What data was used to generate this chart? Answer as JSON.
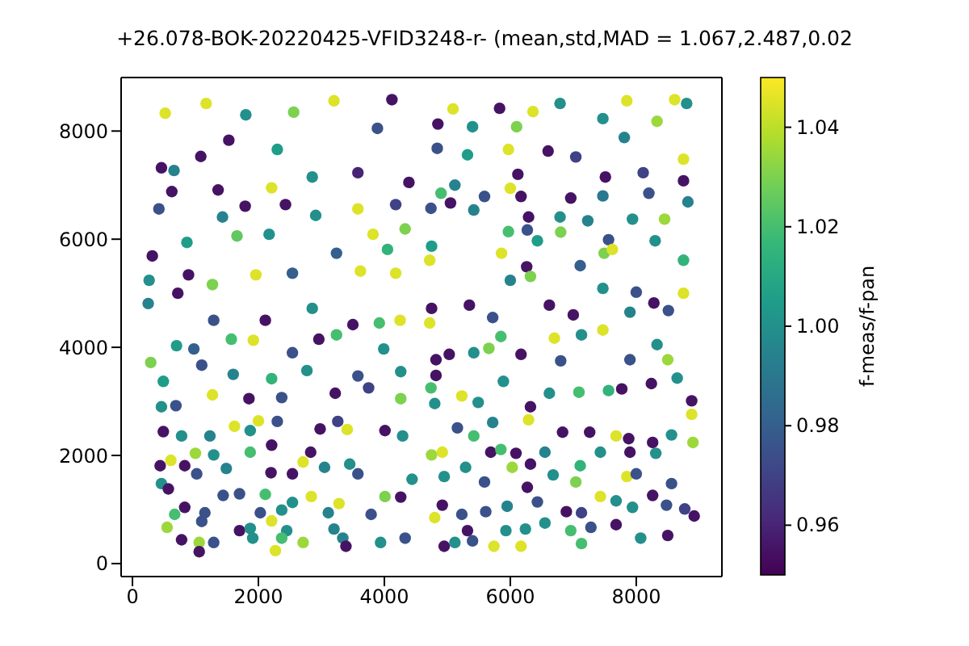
{
  "chart_data": {
    "type": "scatter",
    "title": "+26.078-BOK-20220425-VFID3248-r- (mean,std,MAD = 1.067,2.487,0.02",
    "clabel": "f-meas/f-pan",
    "marker": "circle",
    "xlim": [
      -180,
      9360
    ],
    "ylim": [
      -240,
      8990
    ],
    "xticks": [
      0,
      2000,
      4000,
      6000,
      8000
    ],
    "yticks": [
      0,
      2000,
      4000,
      6000,
      8000
    ],
    "clim": [
      0.95,
      1.05
    ],
    "cticks": [
      0.96,
      0.98,
      {
        "value": 1.0,
        "label": "1.00"
      },
      1.02,
      1.04
    ],
    "x": [
      520,
      1170,
      1800,
      2560,
      3200,
      4120,
      1085,
      1530,
      2300,
      3890,
      460,
      660,
      625,
      1360,
      2210,
      2855,
      3580,
      4390,
      420,
      1790,
      2430,
      3580,
      4180,
      1430,
      2170,
      2910,
      3820,
      4330,
      315,
      865,
      1660,
      3240,
      4050,
      265,
      890,
      1270,
      1960,
      2540,
      3620,
      4180,
      250,
      720,
      1290,
      2110,
      2855,
      3500,
      3920,
      4250,
      5090,
      5830,
      6360,
      6790,
      4850,
      5400,
      6100,
      7470,
      7850,
      8610,
      8800,
      8330,
      4840,
      5320,
      5970,
      6600,
      7040,
      7810,
      8750,
      6120,
      7510,
      8110,
      8750,
      5120,
      6000,
      4900,
      5050,
      5590,
      6170,
      6960,
      7470,
      8200,
      8820,
      4740,
      5420,
      6290,
      6790,
      7230,
      7940,
      8450,
      4720,
      4750,
      5970,
      6270,
      6800,
      7560,
      8300,
      5860,
      6430,
      7490,
      7620,
      8750,
      6260,
      7110,
      6000,
      6320,
      7470,
      8000,
      8750,
      4750,
      5350,
      5720,
      6620,
      7000,
      7900,
      8280,
      8510,
      4720,
      290,
      700,
      975,
      1570,
      1920,
      2540,
      2960,
      3240,
      3990,
      490,
      1100,
      1600,
      2210,
      2770,
      3580,
      4260,
      1270,
      1850,
      2370,
      3220,
      3750,
      4260,
      460,
      690,
      1620,
      2000,
      2300,
      2980,
      3260,
      490,
      780,
      1230,
      1870,
      2210,
      3410,
      4010,
      4290,
      610,
      1000,
      440,
      830,
      1290,
      1490,
      1870,
      2200,
      2540,
      2710,
      2830,
      3050,
      3450,
      3580,
      4440,
      460,
      570,
      1020,
      1440,
      1700,
      2110,
      2840,
      3280,
      4010,
      4260,
      830,
      1150,
      670,
      2030,
      2370,
      2540,
      3110,
      3790,
      550,
      1100,
      1700,
      1870,
      2210,
      2450,
      3200,
      780,
      1060,
      1290,
      1910,
      2370,
      2710,
      3340,
      3940,
      4330,
      1060,
      2270,
      3390,
      4820,
      5030,
      5420,
      5660,
      5850,
      6170,
      6700,
      6800,
      7130,
      7470,
      7900,
      8330,
      8500,
      4820,
      4740,
      5230,
      5490,
      5890,
      6320,
      6620,
      7090,
      7560,
      7770,
      8240,
      8650,
      8880,
      8880,
      4800,
      5720,
      6290,
      6830,
      7260,
      7680,
      7880,
      8260,
      8560,
      8900,
      4750,
      4920,
      5160,
      5420,
      5690,
      5850,
      6090,
      6030,
      6550,
      6320,
      7110,
      7430,
      7900,
      8310,
      4950,
      5290,
      5590,
      6270,
      6680,
      7040,
      7850,
      8000,
      8560,
      4920,
      4800,
      5230,
      5610,
      5950,
      6430,
      6890,
      7130,
      7430,
      7680,
      7940,
      8260,
      8480,
      8770,
      8920,
      5320,
      5930,
      6240,
      6550,
      6960,
      7280,
      7680,
      8070,
      8500,
      4950,
      5120,
      5400,
      5740,
      6170,
      7130
    ],
    "values": [
      8330,
      8510,
      8300,
      8350,
      8560,
      8580,
      7530,
      7830,
      7660,
      8050,
      7320,
      7270,
      6880,
      6910,
      6950,
      7150,
      7230,
      7050,
      6560,
      6610,
      6640,
      6560,
      6640,
      6410,
      6090,
      6440,
      6090,
      6190,
      5690,
      5940,
      6060,
      5740,
      5810,
      5240,
      5340,
      5160,
      5340,
      5370,
      5410,
      5370,
      4810,
      5000,
      4500,
      4500,
      4720,
      4420,
      4450,
      4500,
      8410,
      8420,
      8360,
      8510,
      8130,
      8080,
      8080,
      8230,
      8560,
      8580,
      8510,
      8180,
      7680,
      7560,
      7660,
      7630,
      7520,
      7880,
      7480,
      7200,
      7150,
      7230,
      7080,
      7000,
      6940,
      6850,
      6670,
      6790,
      6790,
      6760,
      6800,
      6850,
      6690,
      6570,
      6540,
      6410,
      6410,
      6340,
      6370,
      6370,
      5610,
      5870,
      6140,
      6170,
      6130,
      5990,
      5970,
      5740,
      5970,
      5740,
      5810,
      5610,
      5490,
      5510,
      5240,
      5310,
      5090,
      5020,
      5000,
      4720,
      4780,
      4550,
      4780,
      4600,
      4650,
      4820,
      4680,
      4450,
      3720,
      4030,
      3970,
      4150,
      4130,
      3900,
      4150,
      4230,
      3970,
      3370,
      3670,
      3500,
      3420,
      3570,
      3470,
      3550,
      3120,
      3050,
      3070,
      3150,
      3250,
      3050,
      2900,
      2920,
      2540,
      2640,
      2630,
      2490,
      2630,
      2440,
      2360,
      2360,
      2460,
      2190,
      2480,
      2460,
      2360,
      1910,
      2040,
      1810,
      1810,
      2010,
      1760,
      2060,
      1680,
      1660,
      1880,
      2060,
      1780,
      1840,
      1660,
      1560,
      1480,
      1380,
      1660,
      1260,
      1290,
      1280,
      1240,
      1110,
      1240,
      1230,
      1040,
      940,
      910,
      940,
      990,
      1130,
      940,
      910,
      670,
      780,
      610,
      650,
      790,
      610,
      640,
      440,
      390,
      390,
      470,
      470,
      390,
      470,
      390,
      470,
      220,
      240,
      320,
      3770,
      3870,
      3900,
      3980,
      4200,
      3870,
      4170,
      3750,
      4230,
      4320,
      3770,
      4050,
      3770,
      3480,
      3250,
      3100,
      2980,
      3370,
      2900,
      3150,
      3170,
      3200,
      3230,
      3330,
      3430,
      3010,
      2760,
      2960,
      2610,
      2660,
      2430,
      2430,
      2360,
      2310,
      2240,
      2380,
      2240,
      2010,
      2060,
      2510,
      2360,
      2060,
      2110,
      2040,
      1780,
      2060,
      1840,
      1810,
      2060,
      2060,
      2040,
      1610,
      1780,
      1510,
      1410,
      1640,
      1510,
      1610,
      1660,
      1480,
      1080,
      850,
      910,
      960,
      1060,
      1140,
      960,
      940,
      1240,
      1160,
      1040,
      1260,
      1080,
      1010,
      880,
      610,
      610,
      640,
      750,
      610,
      670,
      720,
      470,
      520,
      320,
      390,
      420,
      320,
      320,
      370
    ],
    "cvalues": [
      1.045,
      1.045,
      1.0,
      1.03,
      1.045,
      0.955,
      0.955,
      0.955,
      1.005,
      0.975,
      0.955,
      0.995,
      0.955,
      0.955,
      1.045,
      1.0,
      0.96,
      0.955,
      0.975,
      0.955,
      0.955,
      1.045,
      0.97,
      0.995,
      1.0,
      1.0,
      1.045,
      1.03,
      0.955,
      1.005,
      1.025,
      0.98,
      1.015,
      1.0,
      0.955,
      1.03,
      1.045,
      0.98,
      1.045,
      1.045,
      0.995,
      0.955,
      0.975,
      0.955,
      1.0,
      0.955,
      1.02,
      1.045,
      1.045,
      0.955,
      1.045,
      1.0,
      0.955,
      1.0,
      1.03,
      1.0,
      1.045,
      1.045,
      1.0,
      1.035,
      0.975,
      1.005,
      1.045,
      0.955,
      0.97,
      0.995,
      1.045,
      0.955,
      0.955,
      0.97,
      0.955,
      0.995,
      1.045,
      1.02,
      0.955,
      0.975,
      0.955,
      0.955,
      0.99,
      0.975,
      0.995,
      0.975,
      0.995,
      0.955,
      1.0,
      0.995,
      1.0,
      1.035,
      1.045,
      1.005,
      1.02,
      0.975,
      1.03,
      0.975,
      1.0,
      1.045,
      1.005,
      1.03,
      1.045,
      1.015,
      0.955,
      0.98,
      0.995,
      1.03,
      1.0,
      0.975,
      1.045,
      0.955,
      0.955,
      0.975,
      0.955,
      0.955,
      0.995,
      0.955,
      0.975,
      1.045,
      1.03,
      1.005,
      0.98,
      1.02,
      1.045,
      0.975,
      0.955,
      1.02,
      1.0,
      1.005,
      0.975,
      0.995,
      1.015,
      1.0,
      0.975,
      1.0,
      1.045,
      0.955,
      0.975,
      0.955,
      0.97,
      1.03,
      1.0,
      0.975,
      1.045,
      1.045,
      0.975,
      0.955,
      0.97,
      0.955,
      1.0,
      0.995,
      1.0,
      0.955,
      1.045,
      0.955,
      1.0,
      1.045,
      1.035,
      0.955,
      0.955,
      1.0,
      0.995,
      1.02,
      0.955,
      0.955,
      1.045,
      0.955,
      0.995,
      1.0,
      0.975,
      1.0,
      1.0,
      0.955,
      0.975,
      0.975,
      0.975,
      1.02,
      1.045,
      1.045,
      1.03,
      0.955,
      0.955,
      0.975,
      1.02,
      0.975,
      1.0,
      1.0,
      0.995,
      0.975,
      1.035,
      0.975,
      0.955,
      1.0,
      1.045,
      1.0,
      0.995,
      0.955,
      1.035,
      0.975,
      1.0,
      1.02,
      1.035,
      0.995,
      1.0,
      0.975,
      0.955,
      1.045,
      0.955,
      0.955,
      0.955,
      1.0,
      1.03,
      1.02,
      0.955,
      1.045,
      0.975,
      1.0,
      1.045,
      0.975,
      1.0,
      1.035,
      0.955,
      1.02,
      1.045,
      1.0,
      1.0,
      0.955,
      1.0,
      1.02,
      1.015,
      0.955,
      0.955,
      1.0,
      0.955,
      1.045,
      1.0,
      0.995,
      1.045,
      0.955,
      0.955,
      1.045,
      0.955,
      0.955,
      1.0,
      1.035,
      1.035,
      1.045,
      0.975,
      1.02,
      0.955,
      1.02,
      0.955,
      1.035,
      0.995,
      0.955,
      1.015,
      1.0,
      0.955,
      1.0,
      1.0,
      1.0,
      0.975,
      0.955,
      1.0,
      1.03,
      1.045,
      0.975,
      0.975,
      0.955,
      1.045,
      0.975,
      0.975,
      0.995,
      0.975,
      0.955,
      0.97,
      1.045,
      1.0,
      1.0,
      0.955,
      0.975,
      0.97,
      0.955,
      0.955,
      1.0,
      1.0,
      1.0,
      1.02,
      0.975,
      0.955,
      1.0,
      0.955,
      0.955,
      1.0,
      0.975,
      1.045,
      1.045,
      1.02
    ]
  }
}
